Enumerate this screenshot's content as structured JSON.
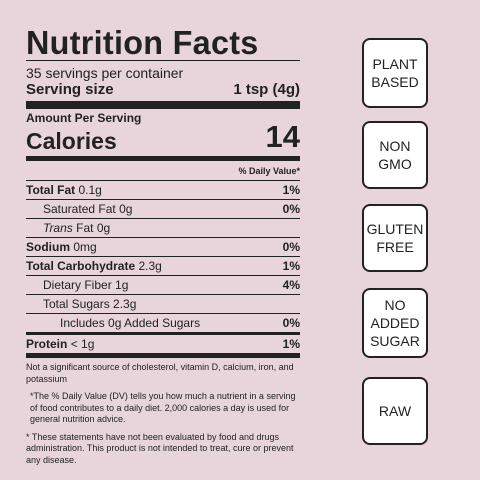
{
  "label": {
    "title": "Nutrition Facts",
    "servings": "35 servings per container",
    "serving_size_label": "Serving size",
    "serving_size_value": "1 tsp (4g)",
    "amount_per_serving": "Amount Per Serving",
    "calories_label": "Calories",
    "calories_value": "14",
    "daily_value_header": "% Daily Value*",
    "nutrients": [
      {
        "name": "Total Fat",
        "amount": "0.1g",
        "dv": "1%"
      },
      {
        "name": "Saturated Fat",
        "amount": "0g",
        "dv": "0%"
      },
      {
        "name": "Trans",
        "amount": "Fat 0g",
        "dv": ""
      },
      {
        "name": "Sodium",
        "amount": "0mg",
        "dv": "0%"
      },
      {
        "name": "Total Carbohydrate",
        "amount": "2.3g",
        "dv": "1%"
      },
      {
        "name": "Dietary Fiber",
        "amount": "1g",
        "dv": "4%"
      },
      {
        "name": "Total Sugars",
        "amount": "2.3g",
        "dv": ""
      },
      {
        "name": "Includes 0g Added Sugars",
        "amount": "",
        "dv": "0%"
      },
      {
        "name": "Protein",
        "amount": "< 1g",
        "dv": "1%"
      }
    ],
    "note_not_significant": "Not a significant source of cholesterol, vitamin D, calcium, iron, and potassium",
    "note_daily_value": "*The % Daily Value (DV) tells you how much a nutrient in a serving of food contributes to a daily diet. 2,000 calories a day is used for general nutrition advice.",
    "note_fda": "* These statements have not been evaluated by food and drugs administration. This product is not intended to treat, cure or prevent any disease."
  },
  "badges": [
    {
      "line1": "PLANT",
      "line2": "BASED",
      "line3": ""
    },
    {
      "line1": "NON",
      "line2": "GMO",
      "line3": ""
    },
    {
      "line1": "GLUTEN",
      "line2": "FREE",
      "line3": ""
    },
    {
      "line1": "NO",
      "line2": "ADDED",
      "line3": "SUGAR"
    },
    {
      "line1": "RAW",
      "line2": "",
      "line3": ""
    }
  ],
  "colors": {
    "background": "#e8d5dc",
    "ink": "#222222",
    "badge_fill": "#ffffff"
  }
}
